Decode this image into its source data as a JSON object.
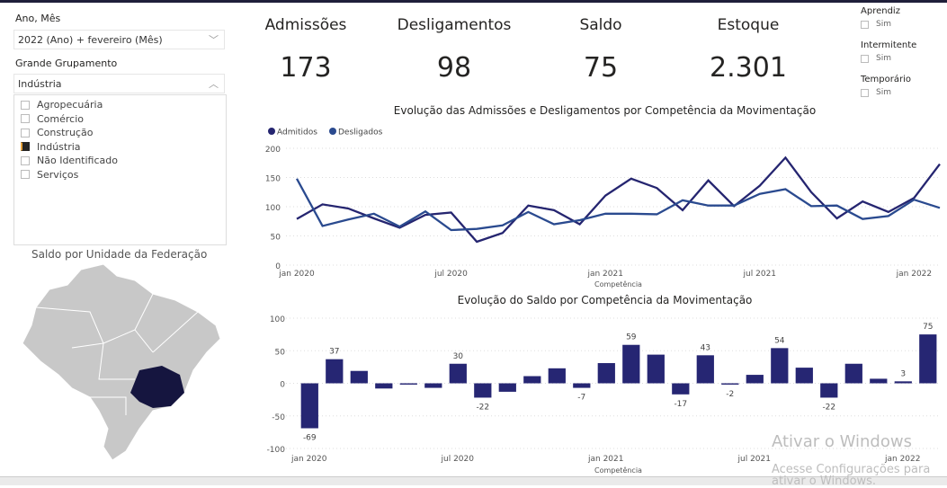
{
  "filters": {
    "ano_mes_label": "Ano, Mês",
    "ano_mes_value": "2022 (Ano) + fevereiro (Mês)",
    "grupo_label": "Grande Grupamento",
    "grupo_value": "Indústria",
    "grupo_options": [
      {
        "label": "Agropecuária",
        "checked": false
      },
      {
        "label": "Comércio",
        "checked": false
      },
      {
        "label": "Construção",
        "checked": false
      },
      {
        "label": "Indústria",
        "checked": true
      },
      {
        "label": "Não Identificado",
        "checked": false
      },
      {
        "label": "Serviços",
        "checked": false
      }
    ]
  },
  "kpis": [
    {
      "title": "Admissões",
      "value": "173"
    },
    {
      "title": "Desligamentos",
      "value": "98"
    },
    {
      "title": "Saldo",
      "value": "75"
    },
    {
      "title": "Estoque",
      "value": "2.301"
    }
  ],
  "flags": [
    {
      "title": "Aprendiz",
      "option": "Sim"
    },
    {
      "title": "Intermitente",
      "option": "Sim"
    },
    {
      "title": "Temporário",
      "option": "Sim"
    }
  ],
  "map": {
    "title": "Saldo por Unidade da Federação",
    "highlight_color": "#15153f",
    "base_color": "#c8c8c8"
  },
  "watermark": {
    "line1": "Ativar o Windows",
    "line2": "Acesse Configurações para ativar o Windows."
  },
  "chart_data": [
    {
      "type": "line",
      "title": "Evolução das Admissões e Desligamentos por Competência da Movimentação",
      "xlabel": "Competência",
      "ylabel": "",
      "x": [
        "2020-01",
        "2020-02",
        "2020-03",
        "2020-04",
        "2020-05",
        "2020-06",
        "2020-07",
        "2020-08",
        "2020-09",
        "2020-10",
        "2020-11",
        "2020-12",
        "2021-01",
        "2021-02",
        "2021-03",
        "2021-04",
        "2021-05",
        "2021-06",
        "2021-07",
        "2021-08",
        "2021-09",
        "2021-10",
        "2021-11",
        "2021-12",
        "2022-01",
        "2022-02"
      ],
      "xticks": [
        "jan 2020",
        "jul 2020",
        "jan 2021",
        "jul 2021",
        "jan 2022"
      ],
      "ylim": [
        0,
        200
      ],
      "yticks": [
        0,
        50,
        100,
        150,
        200
      ],
      "grid": true,
      "legend": "top-left",
      "series": [
        {
          "name": "Admitidos",
          "color": "#252570",
          "values": [
            79,
            104,
            97,
            80,
            64,
            86,
            90,
            40,
            55,
            102,
            94,
            70,
            119,
            148,
            132,
            94,
            145,
            101,
            136,
            184,
            125,
            80,
            109,
            91,
            115,
            173
          ]
        },
        {
          "name": "Desligados",
          "color": "#2a4a8f",
          "values": [
            148,
            67,
            78,
            88,
            66,
            92,
            60,
            62,
            68,
            91,
            70,
            77,
            88,
            88,
            87,
            111,
            102,
            102,
            122,
            130,
            101,
            102,
            79,
            84,
            112,
            98
          ]
        }
      ]
    },
    {
      "type": "bar",
      "title": "Evolução do Saldo por Competência da Movimentação",
      "xlabel": "Competência",
      "ylabel": "",
      "xticks": [
        "jan 2020",
        "jul 2020",
        "jan 2021",
        "jul 2021",
        "jan 2022"
      ],
      "ylim": [
        -100,
        100
      ],
      "yticks": [
        -100,
        -50,
        0,
        50,
        100
      ],
      "grid": true,
      "color": "#262673",
      "values": [
        -69,
        37,
        19,
        -8,
        -2,
        -7,
        30,
        -22,
        -13,
        11,
        23,
        -7,
        31,
        59,
        44,
        -17,
        43,
        -2,
        13,
        54,
        24,
        -22,
        30,
        7,
        3,
        75
      ],
      "data_labels": {
        "0": "-69",
        "1": "37",
        "6": "30",
        "7": "-22",
        "11": "-7",
        "13": "59",
        "15": "-17",
        "16": "43",
        "17": "-2",
        "19": "54",
        "21": "-22",
        "24": "3",
        "25": "75"
      }
    }
  ]
}
